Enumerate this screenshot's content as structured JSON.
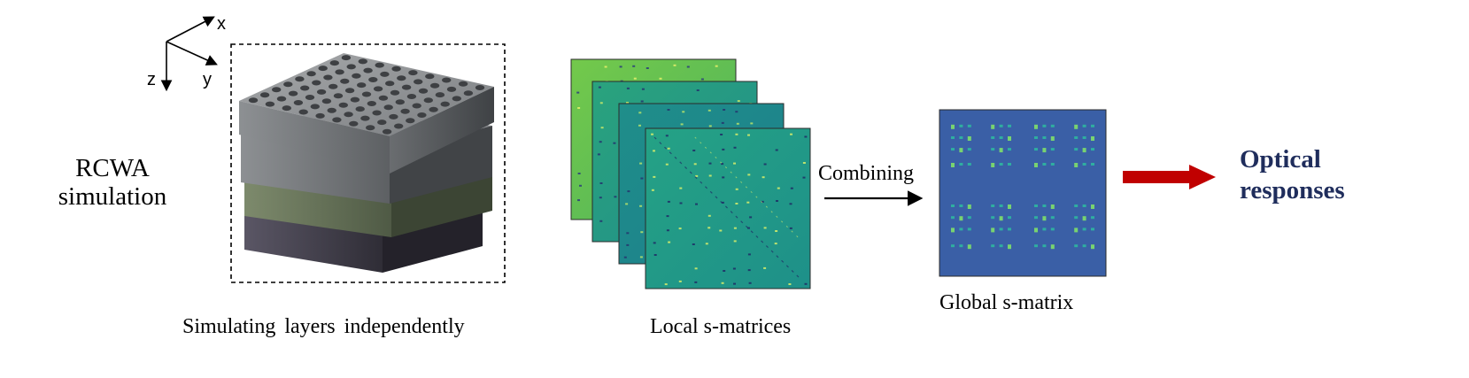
{
  "axes": {
    "x": "x",
    "y": "y",
    "z": "z"
  },
  "left": {
    "title_line1": "RCWA",
    "title_line2": "simulation"
  },
  "layers": {
    "caption": "Simulating layers independently"
  },
  "local": {
    "caption": "Local s-matrices"
  },
  "combine": {
    "label": "Combining"
  },
  "global": {
    "caption": "Global s-matrix"
  },
  "output": {
    "line1": "Optical",
    "line2": "responses"
  },
  "colors": {
    "arrow_red": "#c00000",
    "text_navy": "#1f2d5c",
    "matrix_bright": "#5bc04f",
    "matrix_mid": "#1f9a8a",
    "matrix_teal": "#21a088",
    "global_blue": "#3a5fa6",
    "layer_grey": "#8a8c8e",
    "layer_green": "#8a9976",
    "layer_purple": "#5d5a68"
  }
}
